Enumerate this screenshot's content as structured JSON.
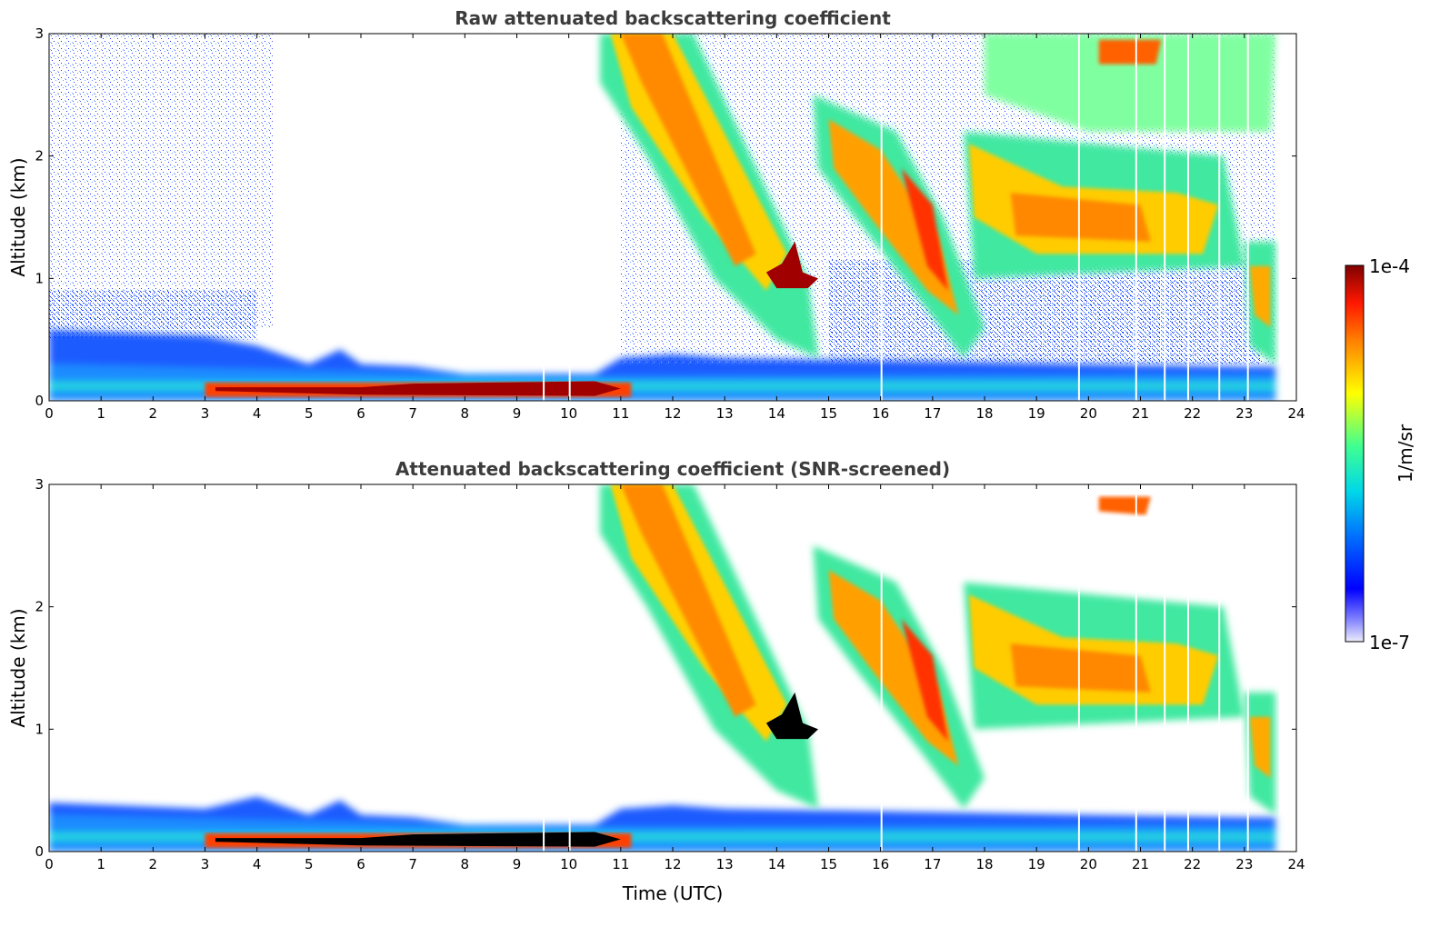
{
  "chart_data": [
    {
      "type": "heatmap",
      "title": "Raw attenuated backscattering coefficient",
      "xlabel": "",
      "ylabel": "Altitude (km)",
      "xlim": [
        0,
        24
      ],
      "ylim": [
        0,
        3
      ],
      "xticks": [
        "0",
        "1",
        "2",
        "3",
        "4",
        "5",
        "6",
        "7",
        "8",
        "9",
        "10",
        "11",
        "12",
        "13",
        "14",
        "15",
        "16",
        "17",
        "18",
        "19",
        "20",
        "21",
        "22",
        "23",
        "24"
      ],
      "yticks": [
        "0",
        "1",
        "2",
        "3"
      ],
      "grid": false,
      "features": [
        {
          "kind": "noise",
          "x": [
            0,
            4
          ],
          "y": [
            0.6,
            3
          ],
          "level": "low"
        },
        {
          "kind": "boundary_layer",
          "x": [
            0,
            23.6
          ],
          "y": [
            0,
            0.55
          ],
          "level": "low-medium"
        },
        {
          "kind": "fog_layer",
          "x": [
            3,
            11.2
          ],
          "y": [
            0.03,
            0.15
          ],
          "level": "high"
        },
        {
          "kind": "cloud_band",
          "x": [
            10.7,
            14.5
          ],
          "y_top": [
            3,
            0.5
          ],
          "level": "medium-high"
        },
        {
          "kind": "cloud_band",
          "x": [
            14.7,
            18.0
          ],
          "y_top": [
            2.3,
            0.4
          ],
          "level": "medium-high"
        },
        {
          "kind": "cloud_layer",
          "x": [
            17.6,
            22.6
          ],
          "y": [
            1.2,
            2.1
          ],
          "level": "medium-high"
        },
        {
          "kind": "cloud_core",
          "x": [
            13.8,
            14.6
          ],
          "y": [
            0.9,
            1.25
          ],
          "level": "very-high"
        },
        {
          "kind": "cloud",
          "x": [
            20.2,
            21.4
          ],
          "y": [
            2.75,
            2.95
          ],
          "level": "high"
        },
        {
          "kind": "cloud",
          "x": [
            23.0,
            23.6
          ],
          "y": [
            0.5,
            1.3
          ],
          "level": "medium-high"
        }
      ]
    },
    {
      "type": "heatmap",
      "title": "Attenuated backscattering coefficient (SNR-screened)",
      "xlabel": "Time (UTC)",
      "ylabel": "Altitude (km)",
      "xlim": [
        0,
        24
      ],
      "ylim": [
        0,
        3
      ],
      "xticks": [
        "0",
        "1",
        "2",
        "3",
        "4",
        "5",
        "6",
        "7",
        "8",
        "9",
        "10",
        "11",
        "12",
        "13",
        "14",
        "15",
        "16",
        "17",
        "18",
        "19",
        "20",
        "21",
        "22",
        "23",
        "24"
      ],
      "yticks": [
        "0",
        "1",
        "2",
        "3"
      ],
      "grid": false,
      "features": [
        {
          "kind": "boundary_layer",
          "x": [
            0,
            23.6
          ],
          "y": [
            0,
            0.4
          ],
          "level": "low-medium"
        },
        {
          "kind": "fog_layer",
          "x": [
            3,
            11.2
          ],
          "y": [
            0.03,
            0.15
          ],
          "level": "high"
        },
        {
          "kind": "cloud_band",
          "x": [
            10.7,
            14.5
          ],
          "y_top": [
            3,
            0.5
          ],
          "level": "medium-high"
        },
        {
          "kind": "cloud_band",
          "x": [
            14.7,
            18.0
          ],
          "y_top": [
            2.3,
            0.4
          ],
          "level": "medium-high"
        },
        {
          "kind": "cloud_layer",
          "x": [
            17.6,
            22.6
          ],
          "y": [
            1.2,
            2.1
          ],
          "level": "medium-high"
        },
        {
          "kind": "saturated_core",
          "x": [
            13.8,
            14.6
          ],
          "y": [
            0.9,
            1.25
          ],
          "color": "#000000"
        },
        {
          "kind": "saturated_core",
          "x": [
            3,
            11.2
          ],
          "y": [
            0.06,
            0.12
          ],
          "color": "#000000"
        }
      ]
    }
  ],
  "colorbar": {
    "label": "1/m/sr",
    "max_label": "1e-4",
    "min_label": "1e-7",
    "scale": "log",
    "range": [
      1e-07,
      0.0001
    ],
    "colormap": [
      "#e8e8f8",
      "#0000ff",
      "#0080ff",
      "#00e0e0",
      "#40ff80",
      "#ffff00",
      "#ff8000",
      "#ff2000",
      "#800000"
    ]
  }
}
